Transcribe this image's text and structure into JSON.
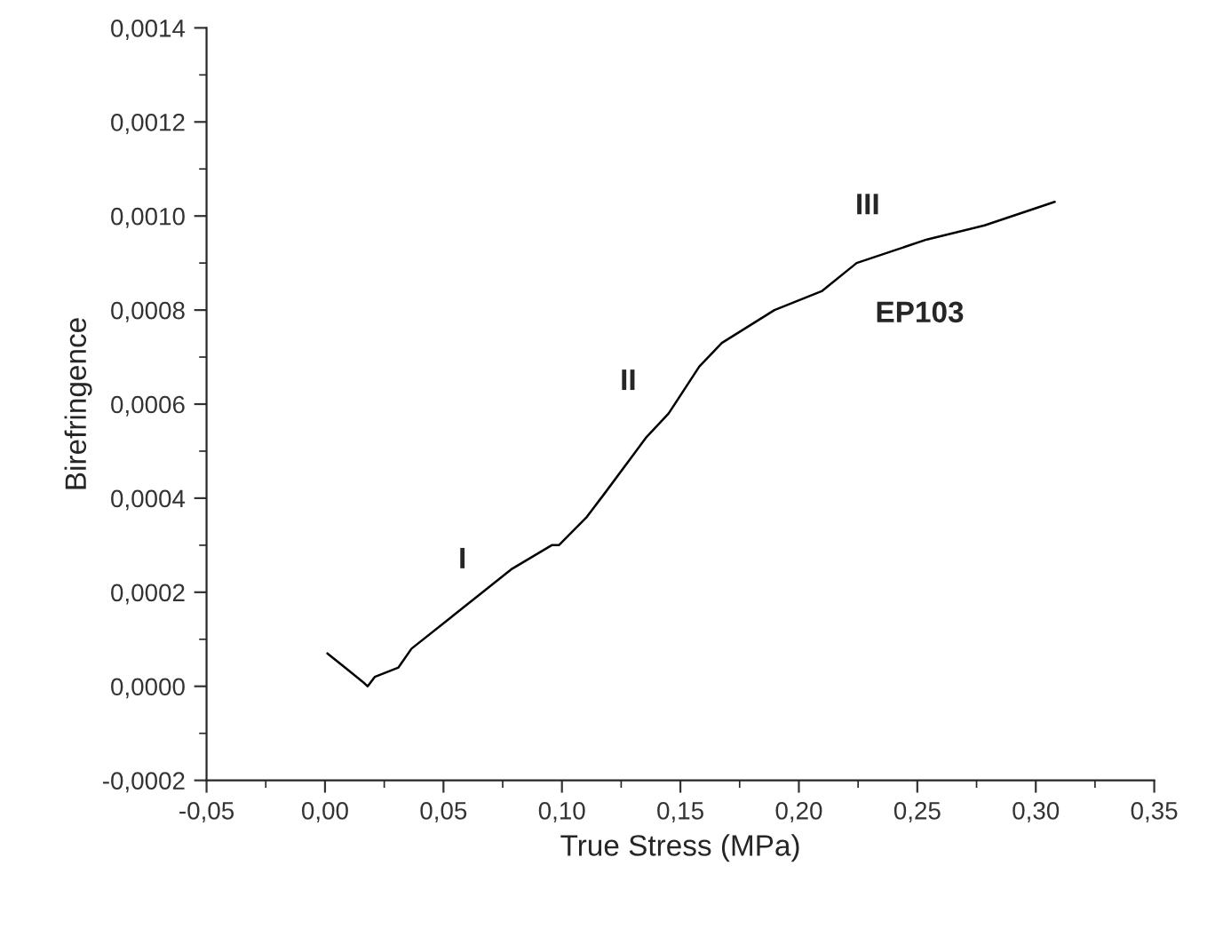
{
  "chart_data": {
    "type": "line",
    "xlabel": "True Stress (MPa)",
    "ylabel": "Birefringence",
    "xlim": [
      -0.05,
      0.35
    ],
    "ylim": [
      -0.0002,
      0.0014
    ],
    "xticks": [
      {
        "value": -0.05,
        "label": "-0,05"
      },
      {
        "value": 0,
        "label": "0,00"
      },
      {
        "value": 0.05,
        "label": "0,05"
      },
      {
        "value": 0.1,
        "label": "0,10"
      },
      {
        "value": 0.15,
        "label": "0,15"
      },
      {
        "value": 0.2,
        "label": "0,20"
      },
      {
        "value": 0.25,
        "label": "0,25"
      },
      {
        "value": 0.3,
        "label": "0,30"
      },
      {
        "value": 0.35,
        "label": "0,35"
      }
    ],
    "yticks": [
      {
        "value": -0.0002,
        "label": "-0,0002"
      },
      {
        "value": 0,
        "label": "0,0000"
      },
      {
        "value": 0.0002,
        "label": "0,0002"
      },
      {
        "value": 0.0004,
        "label": "0,0004"
      },
      {
        "value": 0.0006,
        "label": "0,0006"
      },
      {
        "value": 0.0008,
        "label": "0,0008"
      },
      {
        "value": 0.001,
        "label": "0,0010"
      },
      {
        "value": 0.0012,
        "label": "0,0012"
      },
      {
        "value": 0.0014,
        "label": "0,0014"
      }
    ],
    "grid": false,
    "legend": false,
    "marker": "none",
    "line_style": "solid",
    "x": [
      0.001,
      0.0084,
      0.0158,
      0.018,
      0.021,
      0.031,
      0.0365,
      0.0565,
      0.069,
      0.079,
      0.0957,
      0.0987,
      0.1105,
      0.118,
      0.1357,
      0.145,
      0.158,
      0.1675,
      0.1897,
      0.2096,
      0.2244,
      0.254,
      0.2784,
      0.308
    ],
    "series": [
      {
        "color": "#000000",
        "values": [
          7e-05,
          4e-05,
          1e-05,
          0.0,
          2e-05,
          4e-05,
          8e-05,
          0.00016,
          0.00021,
          0.00025,
          0.0003,
          0.0003,
          0.00036,
          0.00041,
          0.00053,
          0.00058,
          0.00068,
          0.00073,
          0.0008,
          0.00084,
          0.0009,
          0.00095,
          0.00098,
          0.00103
        ]
      }
    ],
    "annotations": [
      "I",
      "II",
      "III",
      "EP103"
    ]
  }
}
